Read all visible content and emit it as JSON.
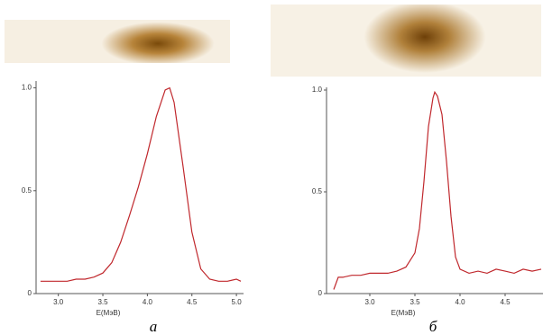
{
  "chart_data": [
    {
      "type": "line",
      "xlabel": "E(МэВ)",
      "panel_label": "а",
      "color": "#c0282d",
      "x": [
        2.8,
        2.9,
        3.0,
        3.1,
        3.2,
        3.3,
        3.4,
        3.5,
        3.6,
        3.7,
        3.8,
        3.9,
        4.0,
        4.1,
        4.2,
        4.25,
        4.3,
        4.4,
        4.5,
        4.6,
        4.7,
        4.8,
        4.9,
        5.0,
        5.05
      ],
      "values": [
        0.06,
        0.06,
        0.06,
        0.06,
        0.07,
        0.07,
        0.08,
        0.1,
        0.15,
        0.25,
        0.38,
        0.52,
        0.68,
        0.86,
        0.99,
        1.0,
        0.93,
        0.62,
        0.3,
        0.12,
        0.07,
        0.06,
        0.06,
        0.07,
        0.06
      ],
      "xlim": [
        2.75,
        5.08
      ],
      "ylim": [
        0,
        1.02
      ],
      "xticks": [
        {
          "value": 3,
          "label": "3.0"
        },
        3.5,
        {
          "value": 4,
          "label": "4.0"
        },
        4.5,
        {
          "value": 5,
          "label": "5.0"
        }
      ],
      "yticks": [
        0,
        0.5,
        {
          "value": 1,
          "label": "1.0"
        }
      ]
    },
    {
      "type": "line",
      "xlabel": "E(МэВ)",
      "panel_label": "б",
      "color": "#c0282d",
      "x": [
        2.6,
        2.65,
        2.7,
        2.8,
        2.9,
        3.0,
        3.1,
        3.2,
        3.3,
        3.4,
        3.5,
        3.55,
        3.6,
        3.65,
        3.7,
        3.72,
        3.75,
        3.8,
        3.85,
        3.9,
        3.95,
        4.0,
        4.1,
        4.2,
        4.3,
        4.4,
        4.5,
        4.6,
        4.7,
        4.8,
        4.9
      ],
      "values": [
        0.02,
        0.08,
        0.08,
        0.09,
        0.09,
        0.1,
        0.1,
        0.1,
        0.11,
        0.13,
        0.2,
        0.32,
        0.55,
        0.82,
        0.96,
        0.99,
        0.97,
        0.88,
        0.65,
        0.38,
        0.18,
        0.12,
        0.1,
        0.11,
        0.1,
        0.12,
        0.11,
        0.1,
        0.12,
        0.11,
        0.12
      ],
      "xlim": [
        2.52,
        4.92
      ],
      "ylim": [
        0,
        1.0
      ],
      "xticks": [
        {
          "value": 3,
          "label": "3.0"
        },
        3.5,
        {
          "value": 4,
          "label": "4.0"
        },
        4.5
      ],
      "yticks": [
        0,
        0.5,
        {
          "value": 1,
          "label": "1.0"
        }
      ]
    }
  ]
}
